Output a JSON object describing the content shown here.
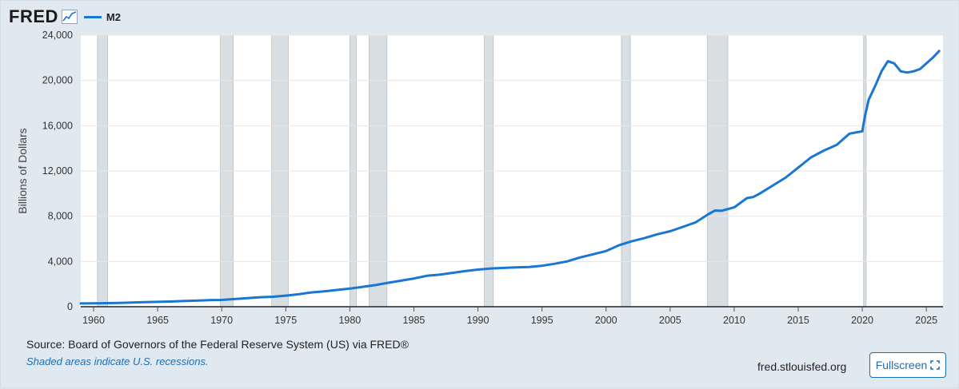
{
  "header": {
    "logo": "FRED",
    "legend_label": "M2"
  },
  "footer": {
    "source": "Source: Board of Governors of the Federal Reserve System (US) via FRED®",
    "note": "Shaded areas indicate U.S. recessions.",
    "site": "fred.stlouisfed.org",
    "fullscreen_label": "Fullscreen"
  },
  "colors": {
    "line": "#1976d2",
    "recession": "#d9dee3",
    "background": "#ffffff",
    "page": "#e1e9f0"
  },
  "chart_data": {
    "type": "line",
    "title": "",
    "xlabel": "",
    "ylabel": "Billions of Dollars",
    "xlim": [
      1959.0,
      2026.3
    ],
    "ylim": [
      0,
      24000
    ],
    "x_ticks": [
      "1960",
      "1965",
      "1970",
      "1975",
      "1980",
      "1985",
      "1990",
      "1995",
      "2000",
      "2005",
      "2010",
      "2015",
      "2020",
      "2025"
    ],
    "y_ticks": [
      "0",
      "4,000",
      "8,000",
      "12,000",
      "16,000",
      "20,000",
      "24,000"
    ],
    "grid": "horizontal",
    "legend": "top-left",
    "recessions": [
      [
        1960.3,
        1961.1
      ],
      [
        1969.9,
        1970.9
      ],
      [
        1973.9,
        1975.2
      ],
      [
        1980.0,
        1980.5
      ],
      [
        1981.5,
        1982.9
      ],
      [
        1990.5,
        1991.2
      ],
      [
        2001.2,
        2001.9
      ],
      [
        2007.9,
        2009.5
      ],
      [
        2020.1,
        2020.3
      ]
    ],
    "series": [
      {
        "name": "M2",
        "x": [
          1959.0,
          1960.0,
          1961.0,
          1962.0,
          1963.0,
          1964.0,
          1965.0,
          1966.0,
          1967.0,
          1968.0,
          1969.0,
          1970.0,
          1971.0,
          1972.0,
          1973.0,
          1974.0,
          1975.0,
          1976.0,
          1977.0,
          1978.0,
          1979.0,
          1980.0,
          1981.0,
          1982.0,
          1983.0,
          1984.0,
          1985.0,
          1986.0,
          1987.0,
          1988.0,
          1989.0,
          1990.0,
          1991.0,
          1992.0,
          1993.0,
          1994.0,
          1995.0,
          1996.0,
          1997.0,
          1998.0,
          1999.0,
          2000.0,
          2001.0,
          2002.0,
          2003.0,
          2004.0,
          2005.0,
          2006.0,
          2007.0,
          2008.0,
          2008.5,
          2009.0,
          2010.0,
          2011.0,
          2011.5,
          2012.0,
          2013.0,
          2014.0,
          2015.0,
          2016.0,
          2017.0,
          2018.0,
          2019.0,
          2020.0,
          2020.2,
          2020.5,
          2021.0,
          2021.5,
          2022.0,
          2022.5,
          2023.0,
          2023.5,
          2024.0,
          2024.5,
          2025.0,
          2025.5,
          2026.0
        ],
        "values": [
          290,
          300,
          315,
          340,
          370,
          400,
          430,
          460,
          500,
          540,
          580,
          600,
          680,
          760,
          840,
          880,
          980,
          1100,
          1260,
          1360,
          1480,
          1600,
          1760,
          1910,
          2120,
          2300,
          2500,
          2730,
          2830,
          2990,
          3150,
          3280,
          3380,
          3430,
          3480,
          3510,
          3620,
          3800,
          4020,
          4360,
          4640,
          4920,
          5430,
          5780,
          6060,
          6400,
          6670,
          7060,
          7460,
          8190,
          8500,
          8480,
          8780,
          9600,
          9700,
          10000,
          10700,
          11400,
          12300,
          13200,
          13800,
          14300,
          15300,
          15500,
          16800,
          18300,
          19500,
          20800,
          21700,
          21500,
          20800,
          20700,
          20800,
          21000,
          21500,
          22000,
          22600
        ]
      }
    ]
  }
}
